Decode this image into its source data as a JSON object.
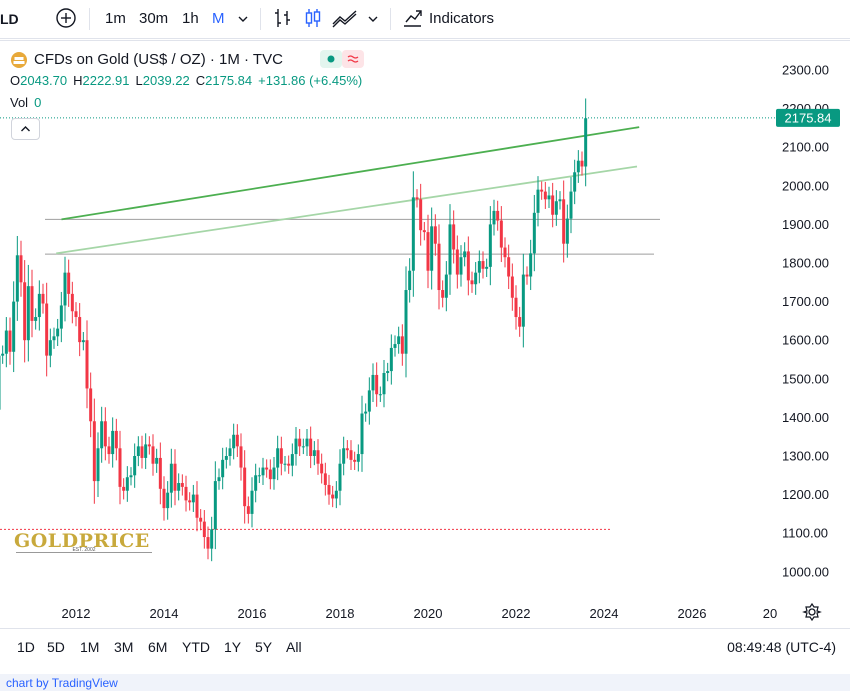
{
  "toolbar": {
    "symbol_fragment": "LD",
    "intervals": [
      {
        "label": "1m",
        "active": false
      },
      {
        "label": "30m",
        "active": false
      },
      {
        "label": "1h",
        "active": false
      },
      {
        "label": "M",
        "active": true
      }
    ],
    "indicators_label": "Indicators",
    "icons": [
      "add-symbol-icon",
      "chevron-down-icon",
      "bar-chart-icon",
      "candle-chart-icon",
      "area-chart-icon",
      "chevron-down-icon",
      "indicators-icon"
    ]
  },
  "legend": {
    "title": "CFDs on Gold (US$ / OZ) · 1M · TVC",
    "open_label": "O",
    "open": "2043.70",
    "high_label": "H",
    "high": "2222.91",
    "low_label": "L",
    "low": "2039.22",
    "close_label": "C",
    "close": "2175.84",
    "change": "+131.86 (+6.45%)",
    "vol_label": "Vol",
    "vol": "0"
  },
  "watermark": {
    "brand": "GOLDPRICE",
    "est": "EST. 2002"
  },
  "chart_data": {
    "type": "candlestick",
    "symbol": "CFDs on Gold (US$ / OZ)",
    "interval": "1M",
    "y_axis": {
      "ticks": [
        "2300.00",
        "2200.00",
        "2100.00",
        "2000.00",
        "1900.00",
        "1800.00",
        "1700.00",
        "1600.00",
        "1500.00",
        "1400.00",
        "1300.00",
        "1200.00",
        "1100.00",
        "1000.00"
      ],
      "range": [
        960,
        2340
      ],
      "side": "right"
    },
    "x_axis": {
      "ticks": [
        "2012",
        "2014",
        "2016",
        "2018",
        "2020",
        "2022",
        "2024",
        "2026",
        "20"
      ],
      "range": [
        2010.0,
        2027.6
      ]
    },
    "last_price": "2175.84",
    "last_price_color": "#089981",
    "up_color": "#089981",
    "down_color": "#f23645",
    "horizontal_levels": [
      1913,
      1823,
      1110
    ],
    "trendlines": [
      {
        "from": [
          2011.67,
          1913
        ],
        "to": [
          2024.8,
          2152
        ],
        "color": "#4caf50"
      },
      {
        "from": [
          2011.55,
          1825
        ],
        "to": [
          2024.75,
          2050
        ],
        "color": "#a5d6a7"
      }
    ],
    "close_series": [
      1340,
      1390,
      1420,
      1560,
      1565,
      1625,
      1570,
      1700,
      1820,
      1750,
      1600,
      1740,
      1650,
      1660,
      1720,
      1695,
      1560,
      1600,
      1610,
      1630,
      1690,
      1775,
      1720,
      1675,
      1660,
      1595,
      1600,
      1475,
      1390,
      1235,
      1320,
      1390,
      1325,
      1305,
      1365,
      1320,
      1220,
      1210,
      1245,
      1250,
      1300,
      1325,
      1295,
      1330,
      1325,
      1280,
      1295,
      1215,
      1165,
      1205,
      1280,
      1210,
      1230,
      1220,
      1185,
      1180,
      1200,
      1140,
      1130,
      1090,
      1060,
      1110,
      1235,
      1245,
      1290,
      1300,
      1320,
      1355,
      1325,
      1270,
      1170,
      1150,
      1210,
      1250,
      1250,
      1270,
      1265,
      1240,
      1270,
      1320,
      1280,
      1280,
      1275,
      1305,
      1345,
      1325,
      1325,
      1345,
      1300,
      1315,
      1280,
      1255,
      1225,
      1200,
      1190,
      1210,
      1280,
      1320,
      1315,
      1290,
      1285,
      1305,
      1410,
      1415,
      1470,
      1510,
      1460,
      1460,
      1515,
      1520,
      1580,
      1590,
      1610,
      1565,
      1730,
      1780,
      1970,
      1965,
      1885,
      1880,
      1780,
      1895,
      1850,
      1730,
      1710,
      1770,
      1900,
      1835,
      1770,
      1815,
      1830,
      1755,
      1745,
      1775,
      1805,
      1785,
      1790,
      1900,
      1935,
      1910,
      1840,
      1815,
      1765,
      1710,
      1660,
      1635,
      1770,
      1765,
      1825,
      1930,
      1990,
      1985,
      1965,
      1975,
      1925,
      1960,
      1965,
      1850,
      1915,
      1985,
      2035,
      2065,
      2050,
      2175
    ]
  },
  "bottombar": {
    "ranges": [
      "1D",
      "5D",
      "1M",
      "3M",
      "6M",
      "YTD",
      "1Y",
      "5Y",
      "All"
    ],
    "clock": "08:49:48 (UTC-4)"
  },
  "attribution": "chart by TradingView"
}
